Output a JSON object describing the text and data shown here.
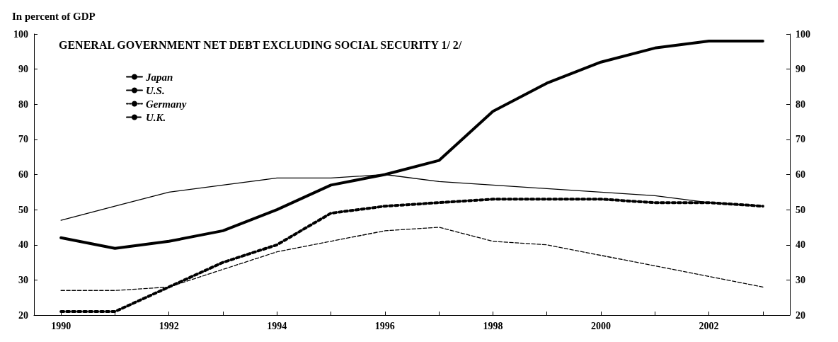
{
  "chart_data": {
    "type": "line",
    "title": "GENERAL GOVERNMENT NET DEBT EXCLUDING SOCIAL SECURITY 1/ 2/",
    "ylabel": "In percent of GDP",
    "x": [
      1990,
      1991,
      1992,
      1993,
      1994,
      1995,
      1996,
      1997,
      1998,
      1999,
      2000,
      2001,
      2002,
      2003
    ],
    "series": [
      {
        "name": "Japan",
        "color": "#000000",
        "line_style": "solid",
        "values": [
          42,
          39,
          41,
          44,
          50,
          57,
          60,
          64,
          78,
          86,
          92,
          96,
          98,
          98
        ]
      },
      {
        "name": "U.S.",
        "color": "#000000",
        "line_style": "solid",
        "values": [
          47,
          51,
          55,
          57,
          59,
          59,
          60,
          58,
          57,
          56,
          55,
          54,
          52,
          51
        ]
      },
      {
        "name": "Germany",
        "color": "#000000",
        "line_style": "dotted",
        "values": [
          21,
          21,
          28,
          35,
          40,
          49,
          51,
          52,
          53,
          53,
          53,
          52,
          52,
          51
        ]
      },
      {
        "name": "U.K.",
        "color": "#000000",
        "line_style": "dashed",
        "values": [
          27,
          27,
          28,
          33,
          38,
          41,
          44,
          45,
          41,
          40,
          37,
          34,
          31,
          28
        ]
      }
    ],
    "xlim": [
      1989.5,
      2003.5
    ],
    "xticks": [
      1990,
      {
        "value": 1991,
        "label": null
      },
      1992,
      {
        "value": 1993,
        "label": null
      },
      1994,
      {
        "value": 1995,
        "label": null
      },
      1996,
      {
        "value": 1997,
        "label": null
      },
      1998,
      {
        "value": 1999,
        "label": null
      },
      2000,
      {
        "value": 2001,
        "label": null
      },
      2002,
      {
        "value": 2003,
        "label": null
      }
    ],
    "ylim": [
      20,
      100
    ],
    "yticks": [
      20,
      30,
      40,
      50,
      60,
      70,
      80,
      90,
      100
    ],
    "y2lim": [
      20,
      100
    ],
    "y2ticks": [
      20,
      30,
      40,
      50,
      60,
      70,
      80,
      90,
      100
    ],
    "grid": false,
    "legend": "top left",
    "marker": "none"
  }
}
